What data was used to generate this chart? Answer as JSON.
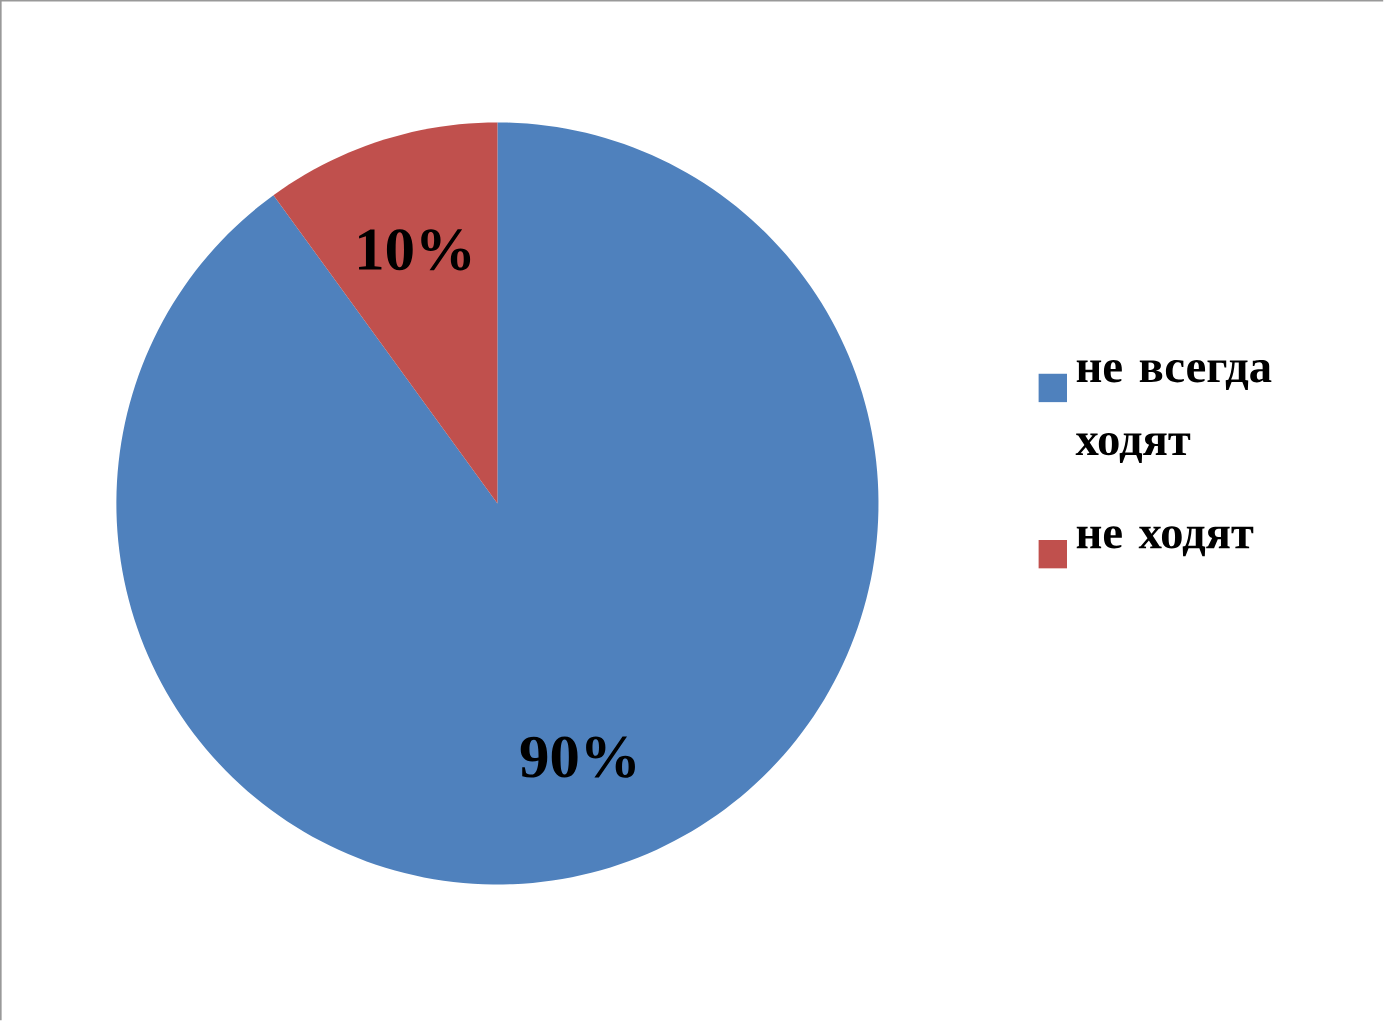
{
  "chart_data": {
    "type": "pie",
    "categories": [
      "не всегда ходят",
      "не ходят"
    ],
    "values": [
      90,
      10
    ],
    "colors": [
      "#4f81bd",
      "#c0504d"
    ],
    "value_labels": [
      "90%",
      "10%"
    ],
    "legend": "right"
  }
}
